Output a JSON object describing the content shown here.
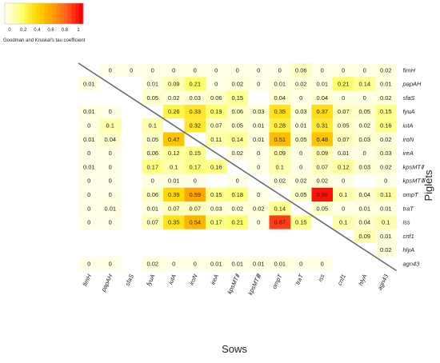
{
  "chart_data": {
    "type": "heatmap",
    "xlabel": "Sows",
    "ylabel": "Piglets",
    "legend": {
      "title": "Goodman and Kruskal's tau  coefficient",
      "ticks": [
        "0",
        "0.2",
        "0.4",
        "0.6",
        "0.8",
        "1"
      ],
      "range": [
        0,
        1
      ],
      "colors": [
        "#FFFFE6",
        "#FFFF70",
        "#FFD700",
        "#FFA500",
        "#FF6020",
        "#FF0000"
      ],
      "placement": "top-left"
    },
    "genes": [
      "fimH",
      "papAH",
      "sfaS",
      "fyuA",
      "iutA",
      "iroN",
      "ireA",
      "kpsMTⅡ",
      "kpsMTⅢ",
      "ompT",
      "traT",
      "iss",
      "cnf1",
      "hlyA",
      "agn43"
    ],
    "cells": [
      {
        "row": "fimH",
        "col": "papAH",
        "value": "0"
      },
      {
        "row": "fimH",
        "col": "sfaS",
        "value": "0"
      },
      {
        "row": "fimH",
        "col": "fyuA",
        "value": "0"
      },
      {
        "row": "fimH",
        "col": "iutA",
        "value": "0"
      },
      {
        "row": "fimH",
        "col": "iroN",
        "value": "0"
      },
      {
        "row": "fimH",
        "col": "ireA",
        "value": "0"
      },
      {
        "row": "fimH",
        "col": "kpsMTⅡ",
        "value": "0"
      },
      {
        "row": "fimH",
        "col": "kpsMTⅢ",
        "value": "0"
      },
      {
        "row": "fimH",
        "col": "ompT",
        "value": "0"
      },
      {
        "row": "fimH",
        "col": "traT",
        "value": "0.06"
      },
      {
        "row": "fimH",
        "col": "iss",
        "value": "0"
      },
      {
        "row": "fimH",
        "col": "cnf1",
        "value": "0"
      },
      {
        "row": "fimH",
        "col": "hlyA",
        "value": "0"
      },
      {
        "row": "fimH",
        "col": "agn43",
        "value": "0.02"
      },
      {
        "row": "papAH",
        "col": "fimH",
        "value": "0.01"
      },
      {
        "row": "papAH",
        "col": "fyuA",
        "value": "0.01"
      },
      {
        "row": "papAH",
        "col": "iutA",
        "value": "0.09"
      },
      {
        "row": "papAH",
        "col": "iroN",
        "value": "0.21"
      },
      {
        "row": "papAH",
        "col": "ireA",
        "value": "0"
      },
      {
        "row": "papAH",
        "col": "kpsMTⅡ",
        "value": "0.02"
      },
      {
        "row": "papAH",
        "col": "kpsMTⅢ",
        "value": "0"
      },
      {
        "row": "papAH",
        "col": "ompT",
        "value": "0.01"
      },
      {
        "row": "papAH",
        "col": "traT",
        "value": "0.02"
      },
      {
        "row": "papAH",
        "col": "iss",
        "value": "0.01"
      },
      {
        "row": "papAH",
        "col": "cnf1",
        "value": "0.21"
      },
      {
        "row": "papAH",
        "col": "hlyA",
        "value": "0.14"
      },
      {
        "row": "papAH",
        "col": "agn43",
        "value": "0.01"
      },
      {
        "row": "sfaS",
        "col": "fyuA",
        "value": "0.05"
      },
      {
        "row": "sfaS",
        "col": "iutA",
        "value": "0.02"
      },
      {
        "row": "sfaS",
        "col": "iroN",
        "value": "0.03"
      },
      {
        "row": "sfaS",
        "col": "ireA",
        "value": "0.06"
      },
      {
        "row": "sfaS",
        "col": "kpsMTⅡ",
        "value": "0.15"
      },
      {
        "row": "sfaS",
        "col": "ompT",
        "value": "0.04"
      },
      {
        "row": "sfaS",
        "col": "traT",
        "value": "0"
      },
      {
        "row": "sfaS",
        "col": "iss",
        "value": "0.04"
      },
      {
        "row": "sfaS",
        "col": "cnf1",
        "value": "0"
      },
      {
        "row": "sfaS",
        "col": "hlyA",
        "value": "0"
      },
      {
        "row": "sfaS",
        "col": "agn43",
        "value": "0.02"
      },
      {
        "row": "fyuA",
        "col": "fimH",
        "value": "0.01"
      },
      {
        "row": "fyuA",
        "col": "papAH",
        "value": "0"
      },
      {
        "row": "fyuA",
        "col": "iutA",
        "value": "0.26"
      },
      {
        "row": "fyuA",
        "col": "iroN",
        "value": "0.33"
      },
      {
        "row": "fyuA",
        "col": "ireA",
        "value": "0.19"
      },
      {
        "row": "fyuA",
        "col": "kpsMTⅡ",
        "value": "0.06"
      },
      {
        "row": "fyuA",
        "col": "kpsMTⅢ",
        "value": "0.03"
      },
      {
        "row": "fyuA",
        "col": "ompT",
        "value": "0.35"
      },
      {
        "row": "fyuA",
        "col": "traT",
        "value": "0.03"
      },
      {
        "row": "fyuA",
        "col": "iss",
        "value": "0.37"
      },
      {
        "row": "fyuA",
        "col": "cnf1",
        "value": "0.07"
      },
      {
        "row": "fyuA",
        "col": "hlyA",
        "value": "0.05"
      },
      {
        "row": "fyuA",
        "col": "agn43",
        "value": "0.15"
      },
      {
        "row": "iutA",
        "col": "fimH",
        "value": "0"
      },
      {
        "row": "iutA",
        "col": "papAH",
        "value": "0.1"
      },
      {
        "row": "iutA",
        "col": "fyuA",
        "value": "0.1"
      },
      {
        "row": "iutA",
        "col": "iroN",
        "value": "0.32"
      },
      {
        "row": "iutA",
        "col": "ireA",
        "value": "0.07"
      },
      {
        "row": "iutA",
        "col": "kpsMTⅡ",
        "value": "0.05"
      },
      {
        "row": "iutA",
        "col": "kpsMTⅢ",
        "value": "0.01"
      },
      {
        "row": "iutA",
        "col": "ompT",
        "value": "0.28"
      },
      {
        "row": "iutA",
        "col": "traT",
        "value": "0.01"
      },
      {
        "row": "iutA",
        "col": "iss",
        "value": "0.31"
      },
      {
        "row": "iutA",
        "col": "cnf1",
        "value": "0.05"
      },
      {
        "row": "iutA",
        "col": "hlyA",
        "value": "0.02"
      },
      {
        "row": "iutA",
        "col": "agn43",
        "value": "0.16"
      },
      {
        "row": "iroN",
        "col": "fimH",
        "value": "0.01"
      },
      {
        "row": "iroN",
        "col": "papAH",
        "value": "0.04"
      },
      {
        "row": "iroN",
        "col": "fyuA",
        "value": "0.05"
      },
      {
        "row": "iroN",
        "col": "iutA",
        "value": "0.47"
      },
      {
        "row": "iroN",
        "col": "ireA",
        "value": "0.11"
      },
      {
        "row": "iroN",
        "col": "kpsMTⅡ",
        "value": "0.14"
      },
      {
        "row": "iroN",
        "col": "kpsMTⅢ",
        "value": "0.01"
      },
      {
        "row": "iroN",
        "col": "ompT",
        "value": "0.51"
      },
      {
        "row": "iroN",
        "col": "traT",
        "value": "0.05"
      },
      {
        "row": "iroN",
        "col": "iss",
        "value": "0.48"
      },
      {
        "row": "iroN",
        "col": "cnf1",
        "value": "0.07"
      },
      {
        "row": "iroN",
        "col": "hlyA",
        "value": "0.03"
      },
      {
        "row": "iroN",
        "col": "agn43",
        "value": "0.02"
      },
      {
        "row": "ireA",
        "col": "fimH",
        "value": "0"
      },
      {
        "row": "ireA",
        "col": "papAH",
        "value": "0"
      },
      {
        "row": "ireA",
        "col": "fyuA",
        "value": "0.06"
      },
      {
        "row": "ireA",
        "col": "iutA",
        "value": "0.12"
      },
      {
        "row": "ireA",
        "col": "iroN",
        "value": "0.15"
      },
      {
        "row": "ireA",
        "col": "kpsMTⅡ",
        "value": "0.02"
      },
      {
        "row": "ireA",
        "col": "kpsMTⅢ",
        "value": "0"
      },
      {
        "row": "ireA",
        "col": "ompT",
        "value": "0.09"
      },
      {
        "row": "ireA",
        "col": "traT",
        "value": "0"
      },
      {
        "row": "ireA",
        "col": "iss",
        "value": "0.09"
      },
      {
        "row": "ireA",
        "col": "cnf1",
        "value": "0.01"
      },
      {
        "row": "ireA",
        "col": "hlyA",
        "value": "0"
      },
      {
        "row": "ireA",
        "col": "agn43",
        "value": "0.03"
      },
      {
        "row": "kpsMTⅡ",
        "col": "fimH",
        "value": "0.01"
      },
      {
        "row": "kpsMTⅡ",
        "col": "papAH",
        "value": "0"
      },
      {
        "row": "kpsMTⅡ",
        "col": "fyuA",
        "value": "0.17"
      },
      {
        "row": "kpsMTⅡ",
        "col": "iutA",
        "value": "0.1"
      },
      {
        "row": "kpsMTⅡ",
        "col": "iroN",
        "value": "0.17"
      },
      {
        "row": "kpsMTⅡ",
        "col": "ireA",
        "value": "0.16"
      },
      {
        "row": "kpsMTⅡ",
        "col": "kpsMTⅢ",
        "value": "0"
      },
      {
        "row": "kpsMTⅡ",
        "col": "ompT",
        "value": "0.1"
      },
      {
        "row": "kpsMTⅡ",
        "col": "traT",
        "value": "0"
      },
      {
        "row": "kpsMTⅡ",
        "col": "iss",
        "value": "0.07"
      },
      {
        "row": "kpsMTⅡ",
        "col": "cnf1",
        "value": "0.12"
      },
      {
        "row": "kpsMTⅡ",
        "col": "hlyA",
        "value": "0.03"
      },
      {
        "row": "kpsMTⅡ",
        "col": "agn43",
        "value": "0.02"
      },
      {
        "row": "kpsMTⅢ",
        "col": "fimH",
        "value": "0"
      },
      {
        "row": "kpsMTⅢ",
        "col": "papAH",
        "value": "0"
      },
      {
        "row": "kpsMTⅢ",
        "col": "fyuA",
        "value": "0"
      },
      {
        "row": "kpsMTⅢ",
        "col": "iutA",
        "value": "0.01"
      },
      {
        "row": "kpsMTⅢ",
        "col": "iroN",
        "value": "0"
      },
      {
        "row": "kpsMTⅢ",
        "col": "kpsMTⅡ",
        "value": "0"
      },
      {
        "row": "kpsMTⅢ",
        "col": "ompT",
        "value": "0.02"
      },
      {
        "row": "kpsMTⅢ",
        "col": "traT",
        "value": "0.02"
      },
      {
        "row": "kpsMTⅢ",
        "col": "iss",
        "value": "0.02"
      },
      {
        "row": "kpsMTⅢ",
        "col": "cnf1",
        "value": "0"
      },
      {
        "row": "kpsMTⅢ",
        "col": "agn43",
        "value": "0"
      },
      {
        "row": "ompT",
        "col": "fimH",
        "value": "0"
      },
      {
        "row": "ompT",
        "col": "papAH",
        "value": "0"
      },
      {
        "row": "ompT",
        "col": "fyuA",
        "value": "0.06"
      },
      {
        "row": "ompT",
        "col": "iutA",
        "value": "0.39"
      },
      {
        "row": "ompT",
        "col": "iroN",
        "value": "0.59"
      },
      {
        "row": "ompT",
        "col": "ireA",
        "value": "0.15"
      },
      {
        "row": "ompT",
        "col": "kpsMTⅡ",
        "value": "0.18"
      },
      {
        "row": "ompT",
        "col": "kpsMTⅢ",
        "value": "0"
      },
      {
        "row": "ompT",
        "col": "traT",
        "value": "0.05"
      },
      {
        "row": "ompT",
        "col": "iss",
        "value": "0.96"
      },
      {
        "row": "ompT",
        "col": "cnf1",
        "value": "0.1"
      },
      {
        "row": "ompT",
        "col": "hlyA",
        "value": "0.04"
      },
      {
        "row": "ompT",
        "col": "agn43",
        "value": "0.11"
      },
      {
        "row": "traT",
        "col": "fimH",
        "value": "0"
      },
      {
        "row": "traT",
        "col": "papAH",
        "value": "0.01"
      },
      {
        "row": "traT",
        "col": "fyuA",
        "value": "0.01"
      },
      {
        "row": "traT",
        "col": "iutA",
        "value": "0.07"
      },
      {
        "row": "traT",
        "col": "iroN",
        "value": "0.07"
      },
      {
        "row": "traT",
        "col": "ireA",
        "value": "0.03"
      },
      {
        "row": "traT",
        "col": "kpsMTⅡ",
        "value": "0.02"
      },
      {
        "row": "traT",
        "col": "kpsMTⅢ",
        "value": "0.02"
      },
      {
        "row": "traT",
        "col": "ompT",
        "value": "0.14"
      },
      {
        "row": "traT",
        "col": "iss",
        "value": "0.05"
      },
      {
        "row": "traT",
        "col": "cnf1",
        "value": "0"
      },
      {
        "row": "traT",
        "col": "hlyA",
        "value": "0.01"
      },
      {
        "row": "traT",
        "col": "agn43",
        "value": "0.01"
      },
      {
        "row": "iss",
        "col": "fimH",
        "value": "0"
      },
      {
        "row": "iss",
        "col": "papAH",
        "value": "0"
      },
      {
        "row": "iss",
        "col": "fyuA",
        "value": "0.07"
      },
      {
        "row": "iss",
        "col": "iutA",
        "value": "0.35"
      },
      {
        "row": "iss",
        "col": "iroN",
        "value": "0.54"
      },
      {
        "row": "iss",
        "col": "ireA",
        "value": "0.17"
      },
      {
        "row": "iss",
        "col": "kpsMTⅡ",
        "value": "0.21"
      },
      {
        "row": "iss",
        "col": "kpsMTⅢ",
        "value": "0"
      },
      {
        "row": "iss",
        "col": "ompT",
        "value": "0.87"
      },
      {
        "row": "iss",
        "col": "traT",
        "value": "0.15"
      },
      {
        "row": "iss",
        "col": "cnf1",
        "value": "0.1"
      },
      {
        "row": "iss",
        "col": "hlyA",
        "value": "0.04"
      },
      {
        "row": "iss",
        "col": "agn43",
        "value": "0.1"
      },
      {
        "row": "cnf1",
        "col": "hlyA",
        "value": "0.09"
      },
      {
        "row": "cnf1",
        "col": "agn43",
        "value": "0.01"
      },
      {
        "row": "hlyA",
        "col": "agn43",
        "value": "0.02"
      },
      {
        "row": "agn43",
        "col": "fimH",
        "value": "0"
      },
      {
        "row": "agn43",
        "col": "papAH",
        "value": "0"
      },
      {
        "row": "agn43",
        "col": "fyuA",
        "value": "0.02"
      },
      {
        "row": "agn43",
        "col": "iutA",
        "value": "0"
      },
      {
        "row": "agn43",
        "col": "iroN",
        "value": "0"
      },
      {
        "row": "agn43",
        "col": "ireA",
        "value": "0.01"
      },
      {
        "row": "agn43",
        "col": "kpsMTⅡ",
        "value": "0.01"
      },
      {
        "row": "agn43",
        "col": "kpsMTⅢ",
        "value": "0.01"
      },
      {
        "row": "agn43",
        "col": "ompT",
        "value": "0.01"
      },
      {
        "row": "agn43",
        "col": "traT",
        "value": "0"
      },
      {
        "row": "agn43",
        "col": "iss",
        "value": "0"
      }
    ]
  }
}
